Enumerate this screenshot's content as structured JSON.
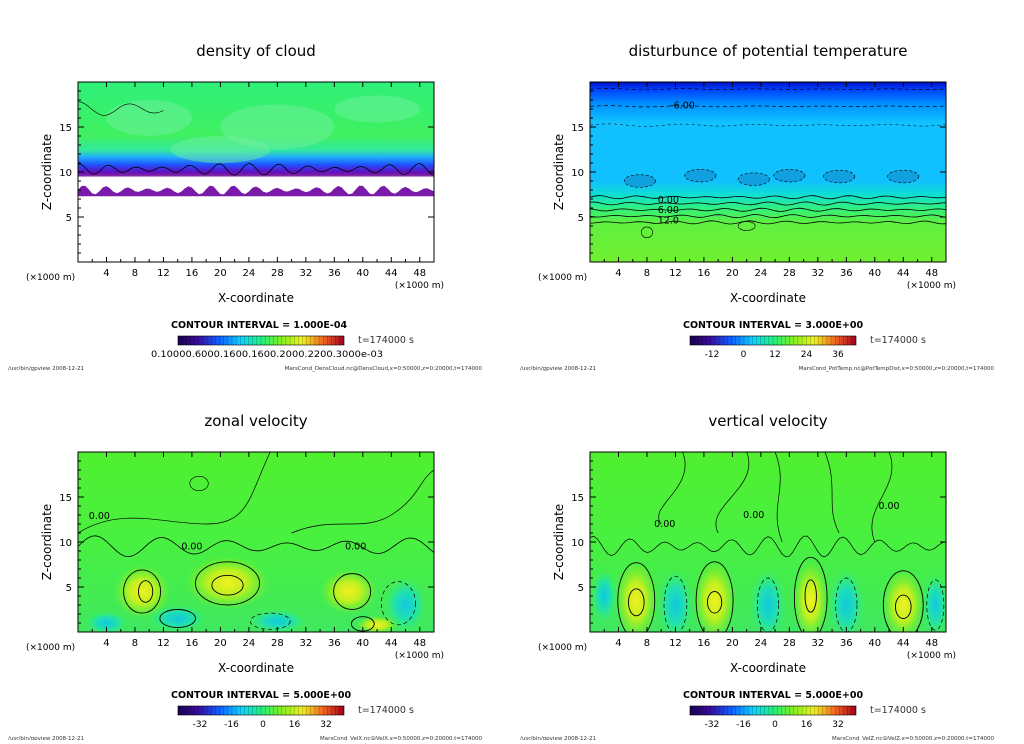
{
  "chart_data": [
    {
      "type": "heatmap",
      "title": "density of cloud",
      "xlabel": "X-coordinate",
      "ylabel": "Z-coordinate",
      "x_unit": "(×1000 m)",
      "x_ticks": [
        "4",
        "8",
        "12",
        "16",
        "20",
        "24",
        "28",
        "32",
        "36",
        "40",
        "44",
        "48"
      ],
      "y_ticks": [
        "5",
        "10",
        "15"
      ],
      "xlim": [
        0,
        50
      ],
      "ylim": [
        0,
        20
      ],
      "contour_interval": "CONTOUR INTERVAL = 1.000E-04",
      "time": "t=174000 s",
      "colorbar_labels": "0.10000.6000.1600.1600.2000.2200.3000e-03",
      "contour_labels": [],
      "footer_left": "/usr/bin/gpview   2008-12-21",
      "footer_right": "MarsCond_DensCloud.nc@DensCloud,x=0:50000,z=0:20000,t=174000",
      "field": "cloud"
    },
    {
      "type": "heatmap",
      "title": "disturbunce of potential temperature",
      "xlabel": "X-coordinate",
      "ylabel": "Z-coordinate",
      "x_unit": "(×1000 m)",
      "x_ticks": [
        "4",
        "8",
        "12",
        "16",
        "20",
        "24",
        "28",
        "32",
        "36",
        "40",
        "44",
        "48"
      ],
      "y_ticks": [
        "5",
        "10",
        "15"
      ],
      "xlim": [
        0,
        50
      ],
      "ylim": [
        0,
        20
      ],
      "contour_interval": "CONTOUR INTERVAL = 3.000E+00",
      "time": "t=174000 s",
      "colorbar_ticks": [
        "-12",
        "0",
        "12",
        "24",
        "36"
      ],
      "contour_labels": [
        "-6.00",
        "0.00",
        "6.00",
        "12.0"
      ],
      "footer_left": "/usr/bin/gpview   2008-12-21",
      "footer_right": "MarsCond_PotTemp.nc@PotTempDist,x=0:50000,z=0:20000,t=174000",
      "field": "ptemp"
    },
    {
      "type": "heatmap",
      "title": "zonal velocity",
      "xlabel": "X-coordinate",
      "ylabel": "Z-coordinate",
      "x_unit": "(×1000 m)",
      "x_ticks": [
        "4",
        "8",
        "12",
        "16",
        "20",
        "24",
        "28",
        "32",
        "36",
        "40",
        "44",
        "48"
      ],
      "y_ticks": [
        "5",
        "10",
        "15"
      ],
      "xlim": [
        0,
        50
      ],
      "ylim": [
        0,
        20
      ],
      "contour_interval": "CONTOUR INTERVAL = 5.000E+00",
      "time": "t=174000 s",
      "colorbar_ticks": [
        "-32",
        "-16",
        "0",
        "16",
        "32"
      ],
      "contour_labels": [
        "0.00",
        "0.00",
        "0.00"
      ],
      "footer_left": "/usr/bin/gpview   2008-12-21",
      "footer_right": "MarsCond_VelX.nc@VelX,x=0:50000,z=0:20000,t=174000",
      "field": "velx"
    },
    {
      "type": "heatmap",
      "title": "vertical velocity",
      "xlabel": "X-coordinate",
      "ylabel": "Z-coordinate",
      "x_unit": "(×1000 m)",
      "x_ticks": [
        "4",
        "8",
        "12",
        "16",
        "20",
        "24",
        "28",
        "32",
        "36",
        "40",
        "44",
        "48"
      ],
      "y_ticks": [
        "5",
        "10",
        "15"
      ],
      "xlim": [
        0,
        50
      ],
      "ylim": [
        0,
        20
      ],
      "contour_interval": "CONTOUR INTERVAL = 5.000E+00",
      "time": "t=174000 s",
      "colorbar_ticks": [
        "-32",
        "-16",
        "0",
        "16",
        "32"
      ],
      "contour_labels": [
        "0.00",
        "0.00",
        "0.00"
      ],
      "footer_left": "/usr/bin/gpview   2008-12-21",
      "footer_right": "MarsCond_VelZ.nc@VelZ,x=0:50000,z=0:20000,t=174000",
      "field": "velz"
    }
  ]
}
